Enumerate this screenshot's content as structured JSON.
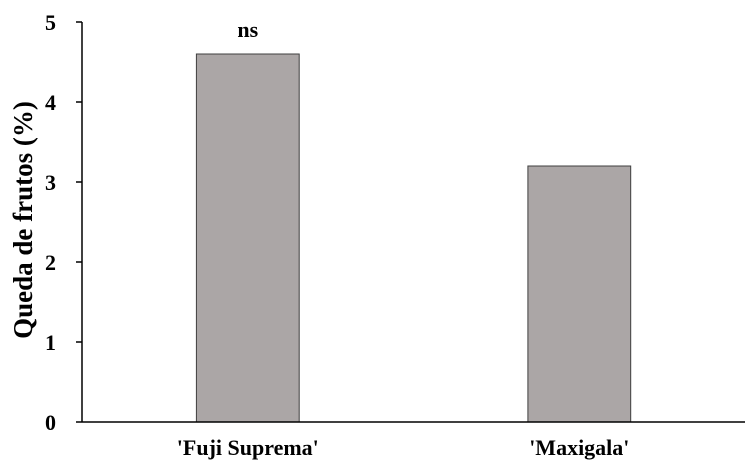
{
  "chart_data": {
    "type": "bar",
    "title": "",
    "xlabel": "",
    "ylabel": "Queda de frutos (%)",
    "categories": [
      "'Fuji Suprema'",
      "'Maxigala'"
    ],
    "values": [
      4.6,
      3.2
    ],
    "ylim": [
      0,
      5
    ],
    "yticks": [
      0,
      1,
      2,
      3,
      4,
      5
    ],
    "grid": false,
    "legend": "none",
    "annotation": "ns",
    "bar_color": "#aba6a6",
    "bar_edge_color": "#3f3f3f"
  }
}
